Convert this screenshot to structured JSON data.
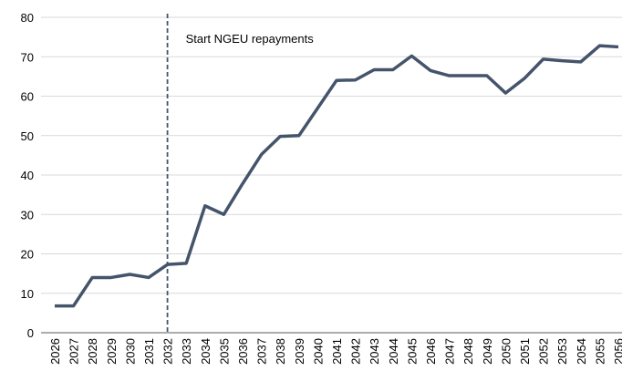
{
  "chart_data": {
    "type": "line",
    "categories": [
      "2026",
      "2027",
      "2028",
      "2029",
      "2030",
      "2031",
      "2032",
      "2033",
      "2034",
      "2035",
      "2036",
      "2037",
      "2038",
      "2039",
      "2040",
      "2041",
      "2042",
      "2043",
      "2044",
      "2045",
      "2046",
      "2047",
      "2048",
      "2049",
      "2050",
      "2051",
      "2052",
      "2053",
      "2054",
      "2055",
      "2056"
    ],
    "series": [
      {
        "color": "#44546a",
        "values": [
          6.8,
          6.8,
          14,
          14,
          14.8,
          14,
          17.3,
          17.6,
          32.2,
          30,
          37.8,
          45.2,
          49.8,
          50,
          57,
          64,
          64.1,
          66.7,
          66.7,
          70.2,
          66.5,
          65.2,
          65.2,
          65.2,
          60.8,
          64.5,
          69.4,
          69,
          68.7,
          72.8,
          72.5
        ]
      }
    ],
    "ylim": [
      0,
      80
    ],
    "yticks": [
      0,
      10,
      20,
      30,
      40,
      50,
      60,
      70,
      80
    ],
    "grid": true,
    "annotation": {
      "text": "Start NGEU repayments",
      "x": "2032"
    }
  }
}
